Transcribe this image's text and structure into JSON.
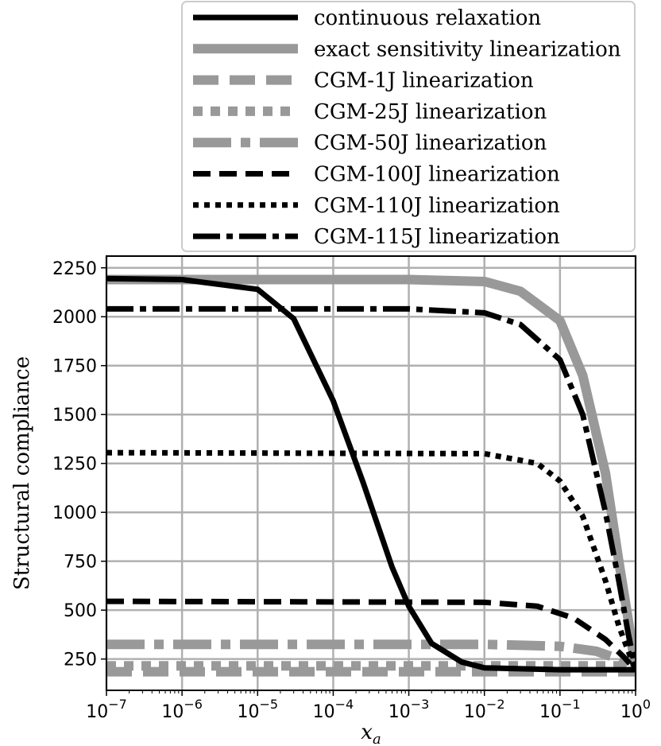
{
  "chart_data": {
    "type": "line",
    "title": "",
    "xlabel": "x_a",
    "ylabel": "Structural compliance",
    "xscale": "log",
    "xlim": [
      1e-07,
      1
    ],
    "ylim": [
      90,
      2310
    ],
    "grid": true,
    "legend_position": "top",
    "yticks": [
      "250",
      "500",
      "750",
      "1000",
      "1250",
      "1500",
      "1750",
      "2000",
      "2250"
    ],
    "xticks": [
      {
        "base": "10",
        "exp": "−7"
      },
      {
        "base": "10",
        "exp": "−6"
      },
      {
        "base": "10",
        "exp": "−5"
      },
      {
        "base": "10",
        "exp": "−4"
      },
      {
        "base": "10",
        "exp": "−3"
      },
      {
        "base": "10",
        "exp": "−2"
      },
      {
        "base": "10",
        "exp": "−1"
      },
      {
        "base": "10",
        "exp": "0"
      }
    ],
    "series": [
      {
        "name": "continuous relaxation",
        "color": "#000000",
        "dash": "solid",
        "width": 7,
        "points": [
          [
            1e-07,
            2195
          ],
          [
            1e-06,
            2190
          ],
          [
            1e-05,
            2140
          ],
          [
            3e-05,
            1990
          ],
          [
            0.0001,
            1570
          ],
          [
            0.00025,
            1150
          ],
          [
            0.0006,
            720
          ],
          [
            0.001,
            520
          ],
          [
            0.002,
            330
          ],
          [
            0.005,
            235
          ],
          [
            0.01,
            205
          ],
          [
            0.1,
            195
          ],
          [
            1,
            195
          ]
        ]
      },
      {
        "name": "exact sensitivity linearization",
        "color": "#999999",
        "dash": "solid",
        "width": 12,
        "points": [
          [
            1e-07,
            2190
          ],
          [
            0.001,
            2190
          ],
          [
            0.01,
            2180
          ],
          [
            0.03,
            2130
          ],
          [
            0.1,
            1980
          ],
          [
            0.2,
            1700
          ],
          [
            0.4,
            1200
          ],
          [
            0.6,
            750
          ],
          [
            0.8,
            450
          ],
          [
            1,
            195
          ]
        ]
      },
      {
        "name": "CGM-1J linearization",
        "color": "#999999",
        "dash": "longdash",
        "width": 12,
        "points": [
          [
            1e-07,
            185
          ],
          [
            1,
            185
          ]
        ]
      },
      {
        "name": "CGM-25J linearization",
        "color": "#999999",
        "dash": "dotted",
        "width": 12,
        "points": [
          [
            1e-07,
            215
          ],
          [
            1,
            215
          ]
        ]
      },
      {
        "name": "CGM-50J linearization",
        "color": "#999999",
        "dash": "dashdot",
        "width": 12,
        "points": [
          [
            1e-07,
            325
          ],
          [
            0.01,
            325
          ],
          [
            0.1,
            315
          ],
          [
            0.3,
            290
          ],
          [
            0.6,
            250
          ],
          [
            1,
            200
          ]
        ]
      },
      {
        "name": "CGM-100J linearization",
        "color": "#000000",
        "dash": "dashed",
        "width": 7,
        "points": [
          [
            1e-07,
            545
          ],
          [
            0.01,
            540
          ],
          [
            0.05,
            520
          ],
          [
            0.15,
            460
          ],
          [
            0.4,
            350
          ],
          [
            0.7,
            260
          ],
          [
            1,
            195
          ]
        ]
      },
      {
        "name": "CGM-110J linearization",
        "color": "#000000",
        "dash": "dotted",
        "width": 7,
        "points": [
          [
            1e-07,
            1305
          ],
          [
            0.01,
            1300
          ],
          [
            0.05,
            1250
          ],
          [
            0.1,
            1160
          ],
          [
            0.2,
            980
          ],
          [
            0.4,
            650
          ],
          [
            0.6,
            420
          ],
          [
            0.8,
            290
          ],
          [
            1,
            195
          ]
        ]
      },
      {
        "name": "CGM-115J linearization",
        "color": "#000000",
        "dash": "dashdot",
        "width": 7,
        "points": [
          [
            1e-07,
            2040
          ],
          [
            0.001,
            2040
          ],
          [
            0.01,
            2020
          ],
          [
            0.03,
            1960
          ],
          [
            0.1,
            1780
          ],
          [
            0.2,
            1500
          ],
          [
            0.4,
            1000
          ],
          [
            0.6,
            650
          ],
          [
            0.8,
            380
          ],
          [
            1,
            195
          ]
        ]
      }
    ]
  }
}
